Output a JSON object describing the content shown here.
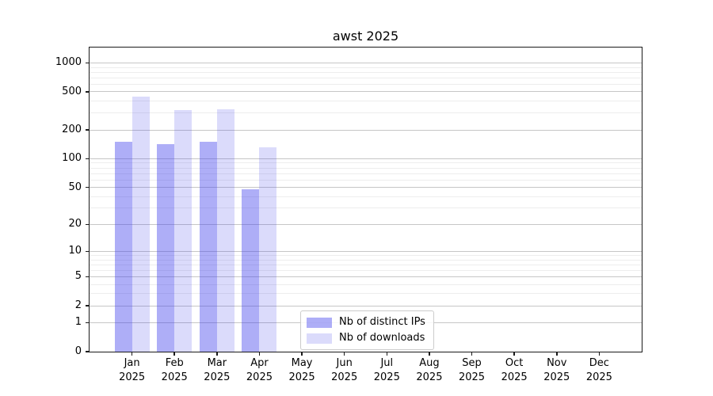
{
  "title": "awst 2025",
  "chart_data": {
    "type": "bar",
    "title": "awst 2025",
    "scale": "log1p",
    "categories": [
      "Jan",
      "Feb",
      "Mar",
      "Apr",
      "May",
      "Jun",
      "Jul",
      "Aug",
      "Sep",
      "Oct",
      "Nov",
      "Dec"
    ],
    "year_label": "2025",
    "series": [
      {
        "name": "Nb of distinct IPs",
        "color": "rgba(62,62,235,0.42)",
        "values": [
          150,
          143,
          151,
          48,
          0,
          0,
          0,
          0,
          0,
          0,
          0,
          0
        ]
      },
      {
        "name": "Nb of downloads",
        "color": "rgba(62,62,235,0.19)",
        "values": [
          450,
          324,
          328,
          133,
          0,
          0,
          0,
          0,
          0,
          0,
          0,
          0
        ]
      }
    ],
    "yticks": [
      0,
      1,
      2,
      5,
      10,
      20,
      50,
      100,
      200,
      500,
      1000
    ],
    "ylim": [
      0,
      1447
    ],
    "grid": true,
    "legend_position": "lower-center",
    "colors": {
      "grid_major": "#c6c6c6",
      "grid_minor": "#ededed",
      "frame": "#1a1a1a",
      "background": "#ffffff"
    }
  }
}
